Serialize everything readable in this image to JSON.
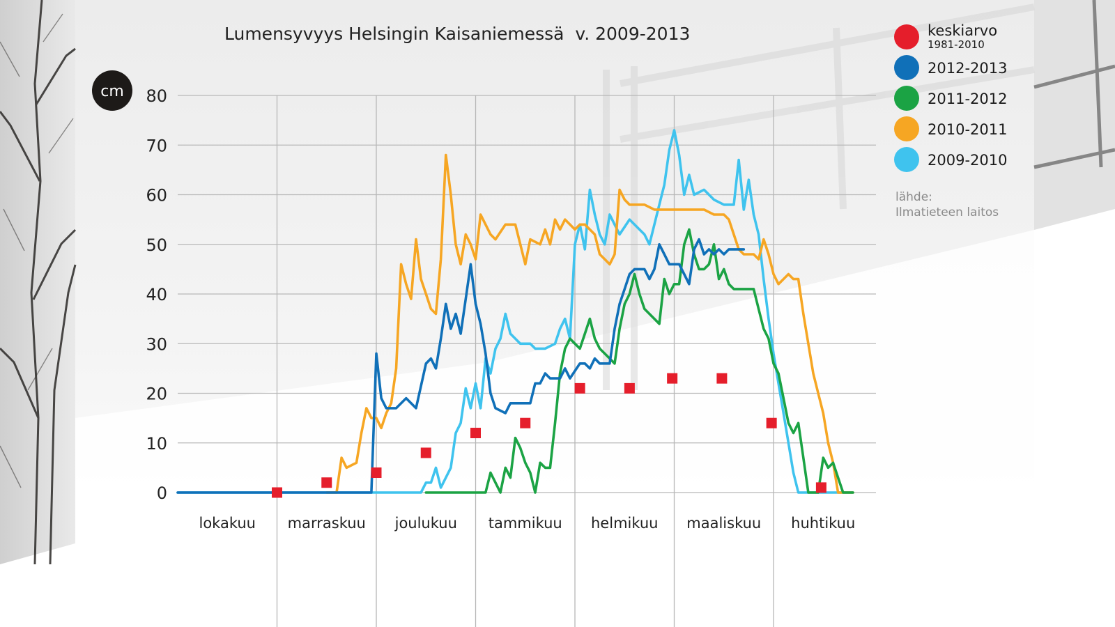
{
  "chart_data": {
    "type": "line",
    "title": "Lumensyvyys Helsingin Kaisaniemessä  v. 2009-2013",
    "unit": "cm",
    "ylim": [
      0,
      80
    ],
    "y_ticks": [
      "0",
      "10",
      "20",
      "30",
      "40",
      "50",
      "60",
      "70",
      "80"
    ],
    "months": [
      "lokakuu",
      "marraskuu",
      "joulukuu",
      "tammikuu",
      "helmikuu",
      "maaliskuu",
      "huhtikuu"
    ],
    "x_range_months": [
      0,
      7
    ],
    "grid": true,
    "legend_position": "top-right",
    "source_label": "lähde:",
    "source_name": "Ilmatieteen laitos",
    "mean": {
      "name": "keskiarvo",
      "period": "1981-2010",
      "color": "#e51e2b",
      "points": [
        [
          1.0,
          0
        ],
        [
          1.5,
          2
        ],
        [
          2.0,
          4
        ],
        [
          2.5,
          8
        ],
        [
          3.0,
          12
        ],
        [
          3.5,
          14
        ],
        [
          4.05,
          21
        ],
        [
          4.55,
          21
        ],
        [
          4.98,
          23
        ],
        [
          5.48,
          23
        ],
        [
          5.98,
          14
        ],
        [
          6.48,
          1
        ]
      ]
    },
    "series": [
      {
        "name": "2012-2013",
        "color": "#1070b8",
        "points": [
          [
            0,
            0
          ],
          [
            1.95,
            0
          ],
          [
            2.0,
            28
          ],
          [
            2.05,
            19
          ],
          [
            2.1,
            17
          ],
          [
            2.2,
            17
          ],
          [
            2.3,
            19
          ],
          [
            2.4,
            17
          ],
          [
            2.5,
            26
          ],
          [
            2.55,
            27
          ],
          [
            2.6,
            25
          ],
          [
            2.65,
            31
          ],
          [
            2.7,
            38
          ],
          [
            2.75,
            33
          ],
          [
            2.8,
            36
          ],
          [
            2.85,
            32
          ],
          [
            2.9,
            39
          ],
          [
            2.95,
            46
          ],
          [
            3.0,
            38
          ],
          [
            3.05,
            34
          ],
          [
            3.1,
            28
          ],
          [
            3.15,
            20
          ],
          [
            3.2,
            17
          ],
          [
            3.3,
            16
          ],
          [
            3.35,
            18
          ],
          [
            3.45,
            18
          ],
          [
            3.55,
            18
          ],
          [
            3.6,
            22
          ],
          [
            3.65,
            22
          ],
          [
            3.7,
            24
          ],
          [
            3.75,
            23
          ],
          [
            3.85,
            23
          ],
          [
            3.9,
            25
          ],
          [
            3.95,
            23
          ],
          [
            4.05,
            26
          ],
          [
            4.1,
            26
          ],
          [
            4.15,
            25
          ],
          [
            4.2,
            27
          ],
          [
            4.25,
            26
          ],
          [
            4.35,
            26
          ],
          [
            4.4,
            33
          ],
          [
            4.45,
            38
          ],
          [
            4.5,
            41
          ],
          [
            4.55,
            44
          ],
          [
            4.6,
            45
          ],
          [
            4.7,
            45
          ],
          [
            4.75,
            43
          ],
          [
            4.8,
            45
          ],
          [
            4.85,
            50
          ],
          [
            4.9,
            48
          ],
          [
            4.95,
            46
          ],
          [
            5.05,
            46
          ],
          [
            5.1,
            44
          ],
          [
            5.15,
            42
          ],
          [
            5.2,
            49
          ],
          [
            5.25,
            51
          ],
          [
            5.3,
            48
          ],
          [
            5.35,
            49
          ],
          [
            5.4,
            48
          ],
          [
            5.45,
            49
          ],
          [
            5.5,
            48
          ],
          [
            5.55,
            49
          ],
          [
            5.6,
            49
          ],
          [
            5.7,
            49
          ]
        ]
      },
      {
        "name": "2011-2012",
        "color": "#1ba344",
        "points": [
          [
            2.5,
            0
          ],
          [
            3.1,
            0
          ],
          [
            3.15,
            4
          ],
          [
            3.2,
            2
          ],
          [
            3.25,
            0
          ],
          [
            3.3,
            5
          ],
          [
            3.35,
            3
          ],
          [
            3.4,
            11
          ],
          [
            3.45,
            9
          ],
          [
            3.5,
            6
          ],
          [
            3.55,
            4
          ],
          [
            3.6,
            0
          ],
          [
            3.65,
            6
          ],
          [
            3.7,
            5
          ],
          [
            3.75,
            5
          ],
          [
            3.8,
            14
          ],
          [
            3.85,
            24
          ],
          [
            3.9,
            29
          ],
          [
            3.95,
            31
          ],
          [
            4.0,
            30
          ],
          [
            4.05,
            29
          ],
          [
            4.1,
            32
          ],
          [
            4.15,
            35
          ],
          [
            4.2,
            31
          ],
          [
            4.25,
            29
          ],
          [
            4.3,
            28
          ],
          [
            4.35,
            27
          ],
          [
            4.4,
            26
          ],
          [
            4.45,
            33
          ],
          [
            4.5,
            38
          ],
          [
            4.55,
            40
          ],
          [
            4.6,
            44
          ],
          [
            4.65,
            40
          ],
          [
            4.7,
            37
          ],
          [
            4.75,
            36
          ],
          [
            4.8,
            35
          ],
          [
            4.85,
            34
          ],
          [
            4.9,
            43
          ],
          [
            4.95,
            40
          ],
          [
            5.0,
            42
          ],
          [
            5.05,
            42
          ],
          [
            5.1,
            50
          ],
          [
            5.15,
            53
          ],
          [
            5.2,
            48
          ],
          [
            5.25,
            45
          ],
          [
            5.3,
            45
          ],
          [
            5.35,
            46
          ],
          [
            5.4,
            50
          ],
          [
            5.45,
            43
          ],
          [
            5.5,
            45
          ],
          [
            5.55,
            42
          ],
          [
            5.6,
            41
          ],
          [
            5.7,
            41
          ],
          [
            5.8,
            41
          ],
          [
            5.85,
            37
          ],
          [
            5.9,
            33
          ],
          [
            5.95,
            31
          ],
          [
            6.0,
            26
          ],
          [
            6.05,
            24
          ],
          [
            6.1,
            19
          ],
          [
            6.15,
            14
          ],
          [
            6.2,
            12
          ],
          [
            6.25,
            14
          ],
          [
            6.3,
            7
          ],
          [
            6.35,
            0
          ],
          [
            6.45,
            0
          ],
          [
            6.5,
            7
          ],
          [
            6.55,
            5
          ],
          [
            6.6,
            6
          ],
          [
            6.65,
            3
          ],
          [
            6.7,
            0
          ],
          [
            6.8,
            0
          ]
        ]
      },
      {
        "name": "2010-2011",
        "color": "#f6a623",
        "points": [
          [
            1.5,
            0
          ],
          [
            1.6,
            0
          ],
          [
            1.65,
            7
          ],
          [
            1.7,
            5
          ],
          [
            1.8,
            6
          ],
          [
            1.85,
            12
          ],
          [
            1.9,
            17
          ],
          [
            1.95,
            15
          ],
          [
            2.0,
            15
          ],
          [
            2.05,
            13
          ],
          [
            2.1,
            16
          ],
          [
            2.15,
            18
          ],
          [
            2.2,
            25
          ],
          [
            2.25,
            46
          ],
          [
            2.3,
            42
          ],
          [
            2.35,
            39
          ],
          [
            2.4,
            51
          ],
          [
            2.45,
            43
          ],
          [
            2.5,
            40
          ],
          [
            2.55,
            37
          ],
          [
            2.6,
            36
          ],
          [
            2.65,
            47
          ],
          [
            2.7,
            68
          ],
          [
            2.75,
            60
          ],
          [
            2.8,
            50
          ],
          [
            2.85,
            46
          ],
          [
            2.9,
            52
          ],
          [
            2.95,
            50
          ],
          [
            3.0,
            47
          ],
          [
            3.05,
            56
          ],
          [
            3.1,
            54
          ],
          [
            3.15,
            52
          ],
          [
            3.2,
            51
          ],
          [
            3.3,
            54
          ],
          [
            3.4,
            54
          ],
          [
            3.5,
            46
          ],
          [
            3.55,
            51
          ],
          [
            3.65,
            50
          ],
          [
            3.7,
            53
          ],
          [
            3.75,
            50
          ],
          [
            3.8,
            55
          ],
          [
            3.85,
            53
          ],
          [
            3.9,
            55
          ],
          [
            4.0,
            53
          ],
          [
            4.05,
            54
          ],
          [
            4.1,
            54
          ],
          [
            4.15,
            53
          ],
          [
            4.2,
            52
          ],
          [
            4.25,
            48
          ],
          [
            4.3,
            47
          ],
          [
            4.35,
            46
          ],
          [
            4.4,
            48
          ],
          [
            4.45,
            61
          ],
          [
            4.5,
            59
          ],
          [
            4.55,
            58
          ],
          [
            4.6,
            58
          ],
          [
            4.7,
            58
          ],
          [
            4.8,
            57
          ],
          [
            4.9,
            57
          ],
          [
            5.0,
            57
          ],
          [
            5.1,
            57
          ],
          [
            5.2,
            57
          ],
          [
            5.3,
            57
          ],
          [
            5.4,
            56
          ],
          [
            5.5,
            56
          ],
          [
            5.55,
            55
          ],
          [
            5.6,
            52
          ],
          [
            5.65,
            49
          ],
          [
            5.7,
            48
          ],
          [
            5.8,
            48
          ],
          [
            5.85,
            47
          ],
          [
            5.9,
            51
          ],
          [
            5.95,
            48
          ],
          [
            6.0,
            44
          ],
          [
            6.05,
            42
          ],
          [
            6.1,
            43
          ],
          [
            6.15,
            44
          ],
          [
            6.2,
            43
          ],
          [
            6.25,
            43
          ],
          [
            6.3,
            36
          ],
          [
            6.35,
            30
          ],
          [
            6.4,
            24
          ],
          [
            6.45,
            20
          ],
          [
            6.5,
            16
          ],
          [
            6.55,
            10
          ],
          [
            6.6,
            6
          ],
          [
            6.65,
            0
          ],
          [
            6.8,
            0
          ]
        ]
      },
      {
        "name": "2009-2010",
        "color": "#3fc3ee",
        "points": [
          [
            0,
            0
          ],
          [
            2.45,
            0
          ],
          [
            2.5,
            2
          ],
          [
            2.55,
            2
          ],
          [
            2.6,
            5
          ],
          [
            2.65,
            1
          ],
          [
            2.7,
            3
          ],
          [
            2.75,
            5
          ],
          [
            2.8,
            12
          ],
          [
            2.85,
            14
          ],
          [
            2.9,
            21
          ],
          [
            2.95,
            17
          ],
          [
            3.0,
            22
          ],
          [
            3.05,
            17
          ],
          [
            3.1,
            27
          ],
          [
            3.15,
            24
          ],
          [
            3.2,
            29
          ],
          [
            3.25,
            31
          ],
          [
            3.3,
            36
          ],
          [
            3.35,
            32
          ],
          [
            3.4,
            31
          ],
          [
            3.45,
            30
          ],
          [
            3.55,
            30
          ],
          [
            3.6,
            29
          ],
          [
            3.7,
            29
          ],
          [
            3.8,
            30
          ],
          [
            3.85,
            33
          ],
          [
            3.9,
            35
          ],
          [
            3.95,
            31
          ],
          [
            4.0,
            50
          ],
          [
            4.05,
            54
          ],
          [
            4.1,
            49
          ],
          [
            4.15,
            61
          ],
          [
            4.2,
            56
          ],
          [
            4.25,
            52
          ],
          [
            4.3,
            50
          ],
          [
            4.35,
            56
          ],
          [
            4.4,
            54
          ],
          [
            4.45,
            52
          ],
          [
            4.55,
            55
          ],
          [
            4.65,
            53
          ],
          [
            4.7,
            52
          ],
          [
            4.75,
            50
          ],
          [
            4.8,
            54
          ],
          [
            4.85,
            58
          ],
          [
            4.9,
            62
          ],
          [
            4.95,
            69
          ],
          [
            5.0,
            73
          ],
          [
            5.05,
            68
          ],
          [
            5.1,
            60
          ],
          [
            5.15,
            64
          ],
          [
            5.2,
            60
          ],
          [
            5.3,
            61
          ],
          [
            5.4,
            59
          ],
          [
            5.5,
            58
          ],
          [
            5.6,
            58
          ],
          [
            5.65,
            67
          ],
          [
            5.7,
            57
          ],
          [
            5.75,
            63
          ],
          [
            5.8,
            56
          ],
          [
            5.85,
            52
          ],
          [
            5.9,
            43
          ],
          [
            5.95,
            35
          ],
          [
            6.0,
            28
          ],
          [
            6.05,
            22
          ],
          [
            6.1,
            16
          ],
          [
            6.15,
            10
          ],
          [
            6.2,
            4
          ],
          [
            6.25,
            0
          ],
          [
            6.8,
            0
          ]
        ]
      }
    ]
  }
}
